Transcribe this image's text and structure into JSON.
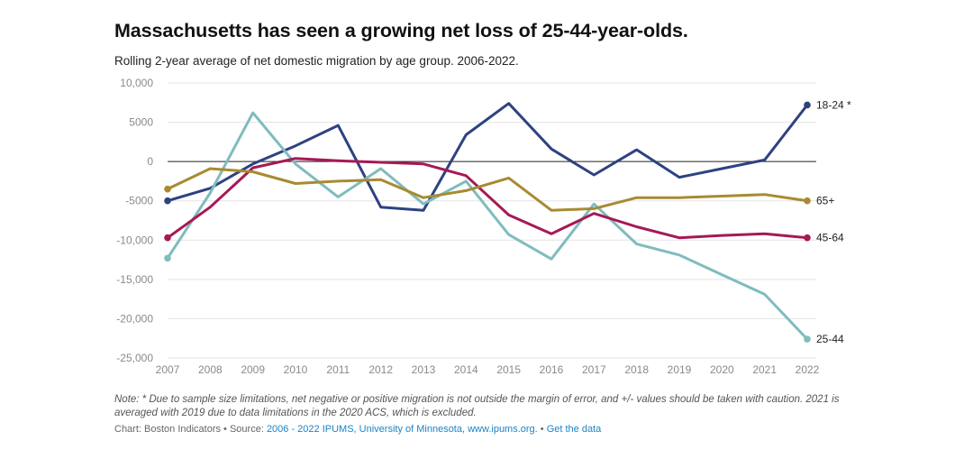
{
  "header": {
    "title": "Massachusetts has seen a growing net loss of 25-44-year-olds.",
    "subtitle": "Rolling 2-year average of net domestic migration by age group. 2006-2022."
  },
  "footer": {
    "note": "Note: * Due to sample size limitations, net negative or positive migration is not outside the margin of error, and +/- values should be taken with caution. 2021 is averaged with 2019 due to data limitations in the 2020 ACS, which is excluded.",
    "credit_prefix": "Chart: Boston Indicators • Source: ",
    "source_link": "2006 - 2022 IPUMS, University of Minnesota, www.ipums.org.",
    "separator": " • ",
    "data_link": "Get the data"
  },
  "chart_data": {
    "type": "line",
    "title": "Massachusetts has seen a growing net loss of 25-44-year-olds.",
    "xlabel": "",
    "ylabel": "",
    "x": [
      "2007",
      "2008",
      "2009",
      "2010",
      "2011",
      "2012",
      "2013",
      "2014",
      "2015",
      "2016",
      "2017",
      "2018",
      "2019",
      "2020",
      "2021",
      "2022"
    ],
    "ylim": [
      -25000,
      10000
    ],
    "yticks": [
      10000,
      5000,
      0,
      -5000,
      -10000,
      -15000,
      -20000,
      -25000
    ],
    "ytick_labels": [
      "10,000",
      "5000",
      "0",
      "-5000",
      "-10,000",
      "-15,000",
      "-20,000",
      "-25,000"
    ],
    "grid": true,
    "series": [
      {
        "name": "18-24 *",
        "color": "#2d4281",
        "values": [
          -5000,
          -3400,
          -300,
          2000,
          4600,
          -5800,
          -6200,
          3400,
          7400,
          1600,
          -1700,
          1500,
          -2000,
          -900,
          200,
          7200
        ]
      },
      {
        "name": "25-44",
        "color": "#7fbcbd",
        "values": [
          -12300,
          -4000,
          6200,
          -300,
          -4500,
          -900,
          -5400,
          -2500,
          -9300,
          -12400,
          -5400,
          -10500,
          -11900,
          -14400,
          -16900,
          -22600
        ]
      },
      {
        "name": "45-64",
        "color": "#a51955",
        "values": [
          -9700,
          -5800,
          -800,
          400,
          100,
          -100,
          -300,
          -1800,
          -6800,
          -9200,
          -6600,
          -8300,
          -9700,
          -9400,
          -9200,
          -9700
        ]
      },
      {
        "name": "65+",
        "color": "#a88a31",
        "values": [
          -3500,
          -900,
          -1300,
          -2800,
          -2500,
          -2300,
          -4600,
          -3700,
          -2100,
          -6200,
          -6000,
          -4600,
          -4600,
          -4400,
          -4200,
          -5000
        ]
      }
    ]
  }
}
